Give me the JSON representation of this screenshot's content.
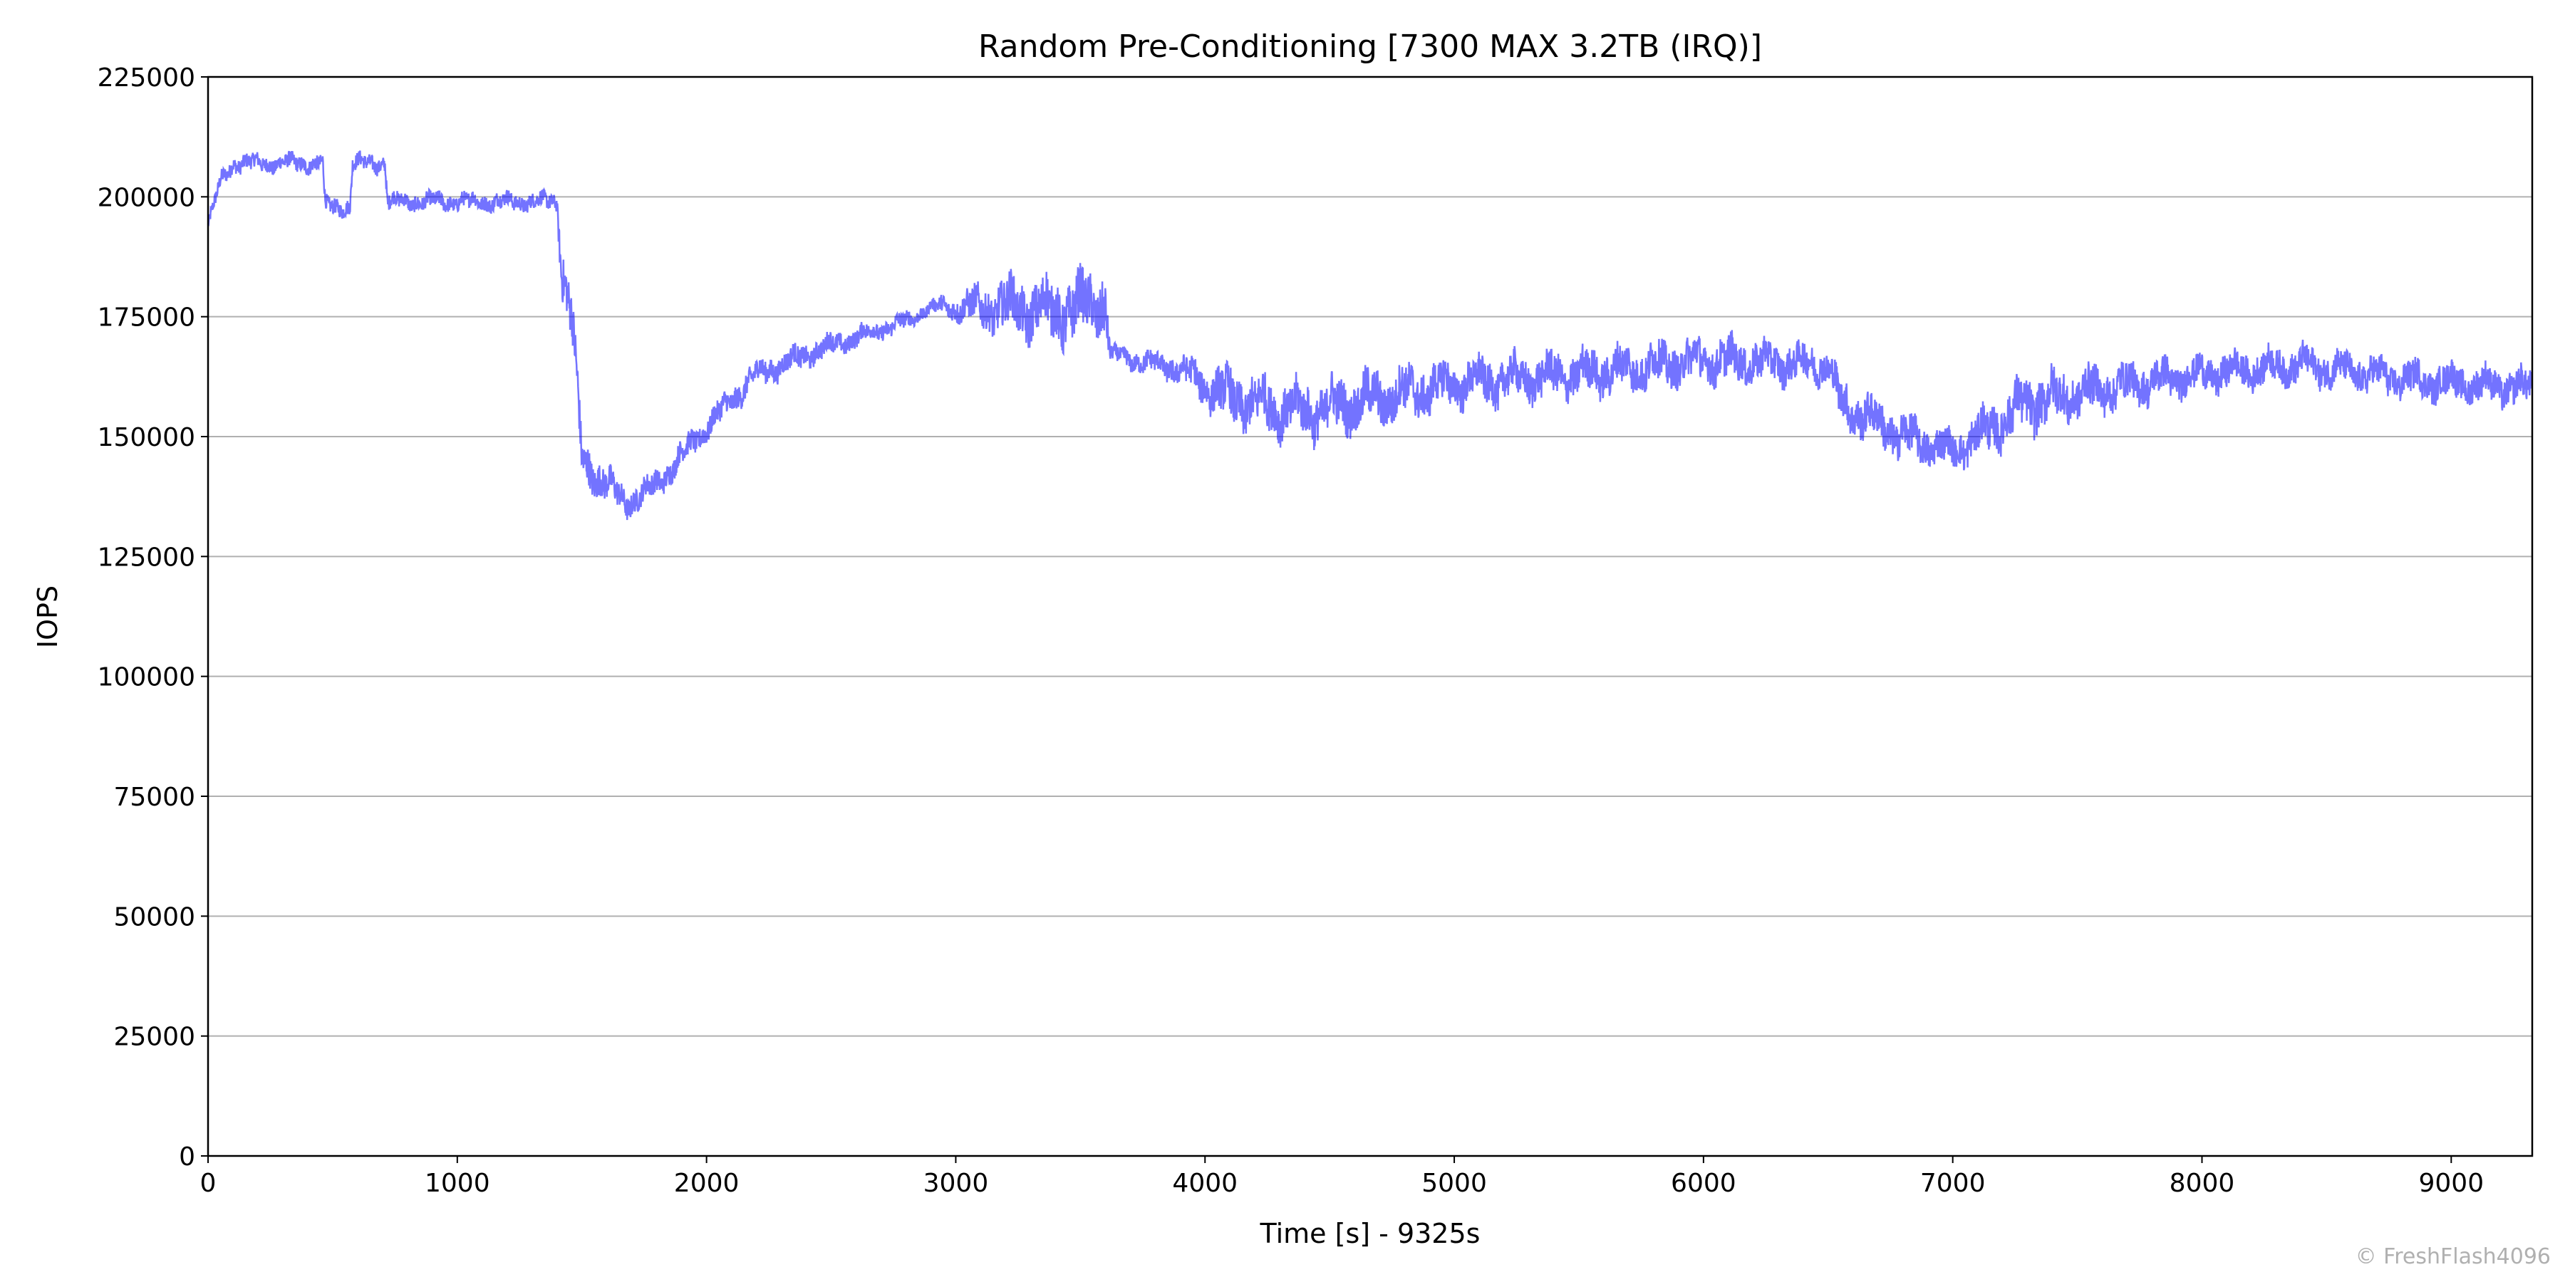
{
  "chart_data": {
    "type": "line",
    "title": "Random Pre-Conditioning [7300 MAX 3.2TB (IRQ)]",
    "xlabel": "Time [s] - 9325s",
    "ylabel": "IOPS",
    "xlim": [
      0,
      9325
    ],
    "ylim": [
      0,
      225000
    ],
    "xticks": [
      0,
      1000,
      2000,
      3000,
      4000,
      5000,
      6000,
      7000,
      8000,
      9000
    ],
    "yticks": [
      0,
      25000,
      50000,
      75000,
      100000,
      125000,
      150000,
      175000,
      200000,
      225000
    ],
    "grid": "horizontal",
    "series": [
      {
        "name": "IOPS",
        "color": "#0000ff",
        "x": [
          0,
          50,
          100,
          460,
          470,
          570,
          580,
          710,
          720,
          1400,
          1420,
          1460,
          1480,
          1500,
          1600,
          1680,
          1800,
          2000,
          2200,
          2500,
          2800,
          2900,
          3200,
          3400,
          3600,
          3620,
          3900,
          4100,
          4400,
          4700,
          5000,
          5500,
          6000,
          6500,
          6550,
          6800,
          7000,
          7100,
          7300,
          7600,
          8000,
          8400,
          8800,
          9325
        ],
        "y": [
          194000,
          203000,
          207000,
          207000,
          198000,
          198000,
          207000,
          207000,
          199000,
          199000,
          185000,
          175000,
          160000,
          145000,
          140000,
          136000,
          140000,
          152000,
          163000,
          169000,
          174000,
          177000,
          177000,
          176000,
          178000,
          167000,
          164000,
          158000,
          155000,
          158000,
          161000,
          163000,
          166000,
          165000,
          157000,
          150000,
          147000,
          150000,
          157000,
          160000,
          163000,
          165000,
          162000,
          160000
        ],
        "spread": [
          1500,
          2000,
          2000,
          2000,
          2000,
          2000,
          2000,
          2000,
          2000,
          2000,
          6000,
          6000,
          6000,
          5000,
          4000,
          3000,
          3000,
          3000,
          3000,
          2500,
          2000,
          1500,
          6000,
          7000,
          7000,
          2000,
          3000,
          6000,
          6000,
          6000,
          5000,
          5000,
          5000,
          4000,
          5000,
          5000,
          4000,
          5000,
          6000,
          5000,
          4000,
          4000,
          4000,
          4000
        ]
      }
    ]
  },
  "watermark": "© FreshFlash4096"
}
